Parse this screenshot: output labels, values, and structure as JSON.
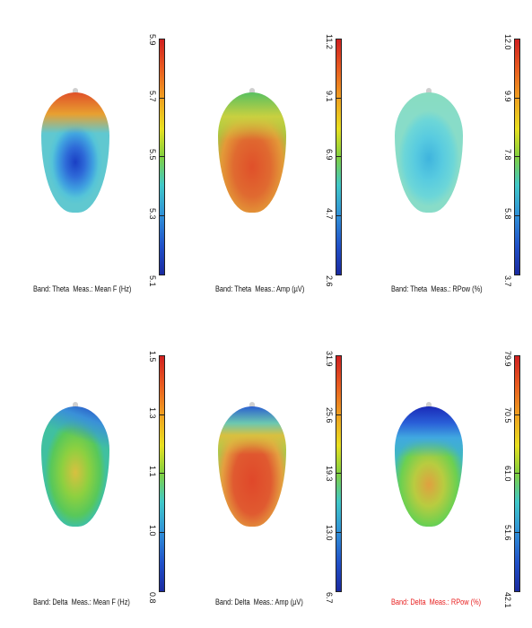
{
  "panels": [
    {
      "band_label": "Band: Theta",
      "meas_label": "Meas.: Mean F (Hz)",
      "scale": {
        "max": "5.9",
        "t1": "5.7",
        "t2": "5.5",
        "t3": "5.3",
        "min": "5.1"
      },
      "highlight": false
    },
    {
      "band_label": "Band: Theta",
      "meas_label": "Meas.: Amp (µV)",
      "scale": {
        "max": "11.2",
        "t1": "9.1",
        "t2": "6.9",
        "t3": "4.7",
        "min": "2.6"
      },
      "highlight": false
    },
    {
      "band_label": "Band: Theta",
      "meas_label": "Meas.: RPow (%)",
      "scale": {
        "max": "12.0",
        "t1": "9.9",
        "t2": "7.8",
        "t3": "5.8",
        "min": "3.7"
      },
      "highlight": false
    },
    {
      "band_label": "Band: Delta",
      "meas_label": "Meas.: Mean F (Hz)",
      "scale": {
        "max": "1.5",
        "t1": "1.3",
        "t2": "1.1",
        "t3": "1.0",
        "min": "0.8"
      },
      "highlight": false
    },
    {
      "band_label": "Band: Delta",
      "meas_label": "Meas.: Amp (µV)",
      "scale": {
        "max": "31.9",
        "t1": "25.6",
        "t2": "19.3",
        "t3": "13.0",
        "min": "6.7"
      },
      "highlight": false
    },
    {
      "band_label": "Band: Delta",
      "meas_label": "Meas.: RPow (%)",
      "scale": {
        "max": "79.9",
        "t1": "70.5",
        "t2": "61.0",
        "t3": "51.6",
        "min": "42.1"
      },
      "highlight": true
    }
  ],
  "colors": {
    "caption_default": "#111111",
    "caption_highlight": "#e82020"
  }
}
